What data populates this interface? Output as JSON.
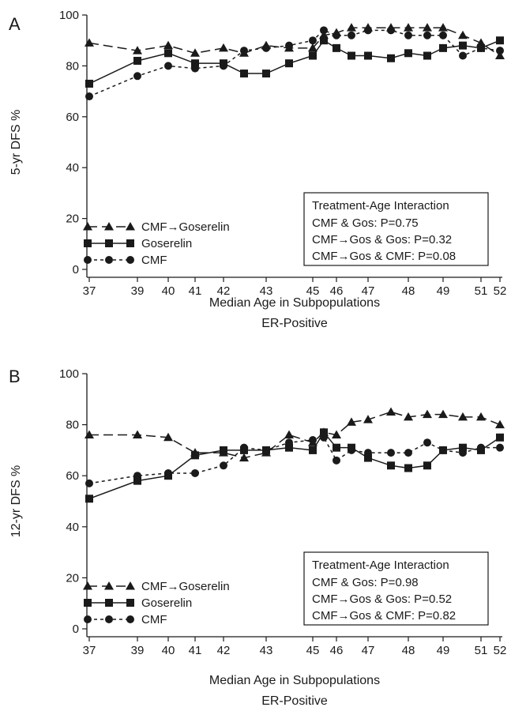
{
  "colors": {
    "line": "#1a1a1a",
    "background": "#ffffff"
  },
  "chart_data": [
    {
      "type": "line",
      "panel_label": "A",
      "xlabel": "Median Age in Subpopulations",
      "xlabel2": "ER-Positive",
      "ylabel": "5-yr DFS %",
      "ylim": [
        0,
        100
      ],
      "yticks": [
        "0",
        "20",
        "40",
        "60",
        "80",
        "100"
      ],
      "xticks": [
        "37",
        "39",
        "40",
        "41",
        "42",
        "43",
        "45",
        "46",
        "47",
        "48",
        "49",
        "51",
        "52"
      ],
      "x": [
        "37",
        "39",
        "40",
        "41",
        "42",
        "42.5",
        "43",
        "44",
        "45",
        "45.5",
        "46",
        "46.5",
        "47",
        "47.5",
        "48",
        "48.5",
        "49",
        "50",
        "51",
        "52"
      ],
      "series": [
        {
          "name": "CMF→Goserelin",
          "marker": "triangle",
          "dash": "long",
          "values": [
            89,
            86,
            88,
            85,
            87,
            85,
            88,
            87,
            87,
            92,
            93,
            95,
            95,
            95,
            95,
            95,
            95,
            92,
            89,
            84
          ]
        },
        {
          "name": "Goserelin",
          "marker": "square",
          "dash": "solid",
          "values": [
            73,
            82,
            85,
            81,
            81,
            77,
            77,
            81,
            84,
            90,
            87,
            84,
            84,
            83,
            85,
            84,
            87,
            88,
            87,
            90
          ]
        },
        {
          "name": "CMF",
          "marker": "circle",
          "dash": "short",
          "values": [
            68,
            76,
            80,
            79,
            80,
            86,
            87,
            88,
            90,
            94,
            92,
            92,
            94,
            94,
            92,
            92,
            92,
            84,
            87,
            86
          ]
        }
      ],
      "legend_placement": "bottom-left",
      "annotation": {
        "title": "Treatment-Age Interaction",
        "lines": [
          "CMF & Gos: P=0.75",
          "CMF→Gos & Gos: P=0.32",
          "CMF→Gos & CMF: P=0.08"
        ]
      },
      "grid": false
    },
    {
      "type": "line",
      "panel_label": "B",
      "xlabel": "Median Age in Subpopulations",
      "xlabel2": "ER-Positive",
      "ylabel": "12-yr DFS %",
      "ylim": [
        0,
        100
      ],
      "yticks": [
        "0",
        "20",
        "40",
        "60",
        "80",
        "100"
      ],
      "xticks": [
        "37",
        "39",
        "40",
        "41",
        "42",
        "43",
        "45",
        "46",
        "47",
        "48",
        "49",
        "51",
        "52"
      ],
      "x": [
        "37",
        "39",
        "40",
        "41",
        "42",
        "42.5",
        "43",
        "44",
        "45",
        "45.5",
        "46",
        "46.5",
        "47",
        "47.5",
        "48",
        "48.5",
        "49",
        "50",
        "51",
        "52"
      ],
      "series": [
        {
          "name": "CMF→Goserelin",
          "marker": "triangle",
          "dash": "long",
          "values": [
            76,
            76,
            75,
            69,
            69,
            67,
            69,
            76,
            73,
            77,
            76,
            81,
            82,
            85,
            83,
            84,
            84,
            83,
            83,
            80
          ]
        },
        {
          "name": "Goserelin",
          "marker": "square",
          "dash": "solid",
          "values": [
            51,
            58,
            60,
            68,
            70,
            70,
            70,
            71,
            70,
            77,
            71,
            71,
            67,
            64,
            63,
            64,
            70,
            71,
            70,
            75
          ]
        },
        {
          "name": "CMF",
          "marker": "circle",
          "dash": "short",
          "values": [
            57,
            60,
            61,
            61,
            64,
            71,
            70,
            73,
            74,
            75,
            66,
            70,
            69,
            69,
            69,
            73,
            70,
            69,
            71,
            71
          ]
        }
      ],
      "legend_placement": "bottom-left",
      "annotation": {
        "title": "Treatment-Age Interaction",
        "lines": [
          "CMF & Gos: P=0.98",
          "CMF→Gos & Gos: P=0.52",
          "CMF→Gos & CMF: P=0.82"
        ]
      },
      "grid": false
    }
  ]
}
